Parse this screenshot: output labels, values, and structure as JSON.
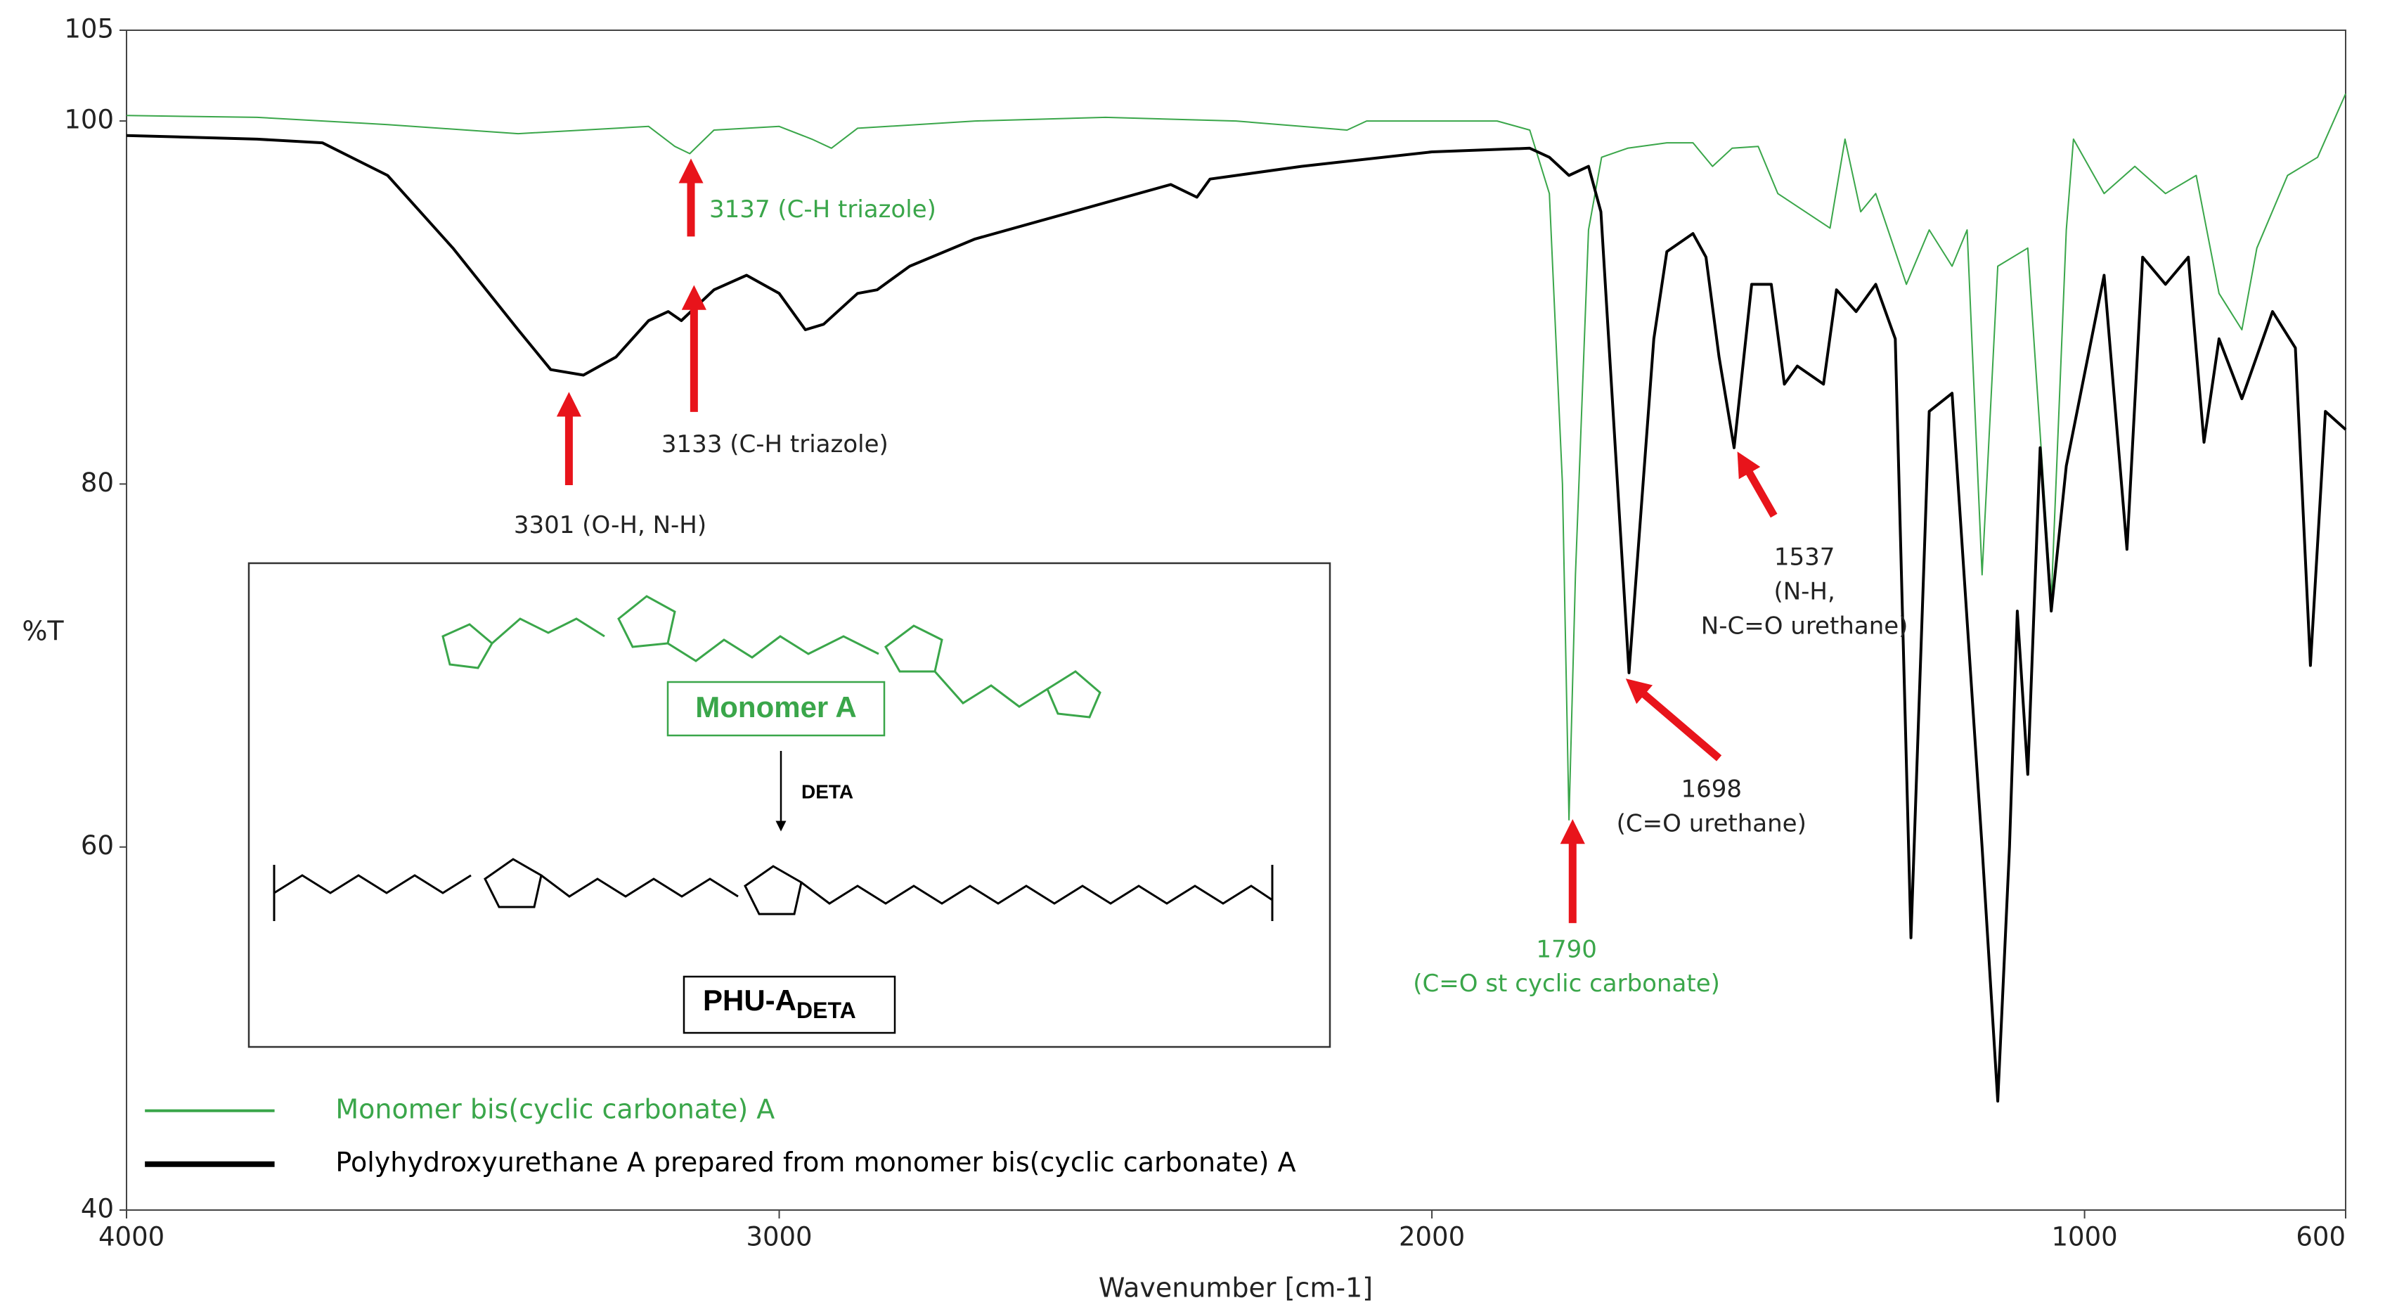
{
  "chart_data": {
    "type": "line",
    "x_label": "Wavenumber [cm-1]",
    "y_label": "%T",
    "xlim": [
      4000,
      600
    ],
    "ylim": [
      40,
      105
    ],
    "xticks": [
      4000,
      3000,
      2000,
      1000,
      600
    ],
    "yticks": [
      40,
      60,
      80,
      100,
      105
    ],
    "series": [
      {
        "name": "Monomer bis(cyclic carbonate) A",
        "color": "#3aa64a",
        "stroke_width": 2,
        "x": [
          4000,
          3800,
          3600,
          3400,
          3200,
          3160,
          3137,
          3100,
          3000,
          2950,
          2920,
          2880,
          2700,
          2500,
          2300,
          2130,
          2100,
          2000,
          1900,
          1850,
          1820,
          1800,
          1790,
          1780,
          1760,
          1740,
          1700,
          1640,
          1600,
          1570,
          1540,
          1500,
          1470,
          1390,
          1367,
          1343,
          1320,
          1273,
          1238,
          1203,
          1180,
          1157,
          1133,
          1087,
          1051,
          1028,
          1017,
          970,
          923,
          876,
          829,
          794,
          759,
          736,
          689,
          643,
          600
        ],
        "values": [
          100.3,
          100.2,
          99.8,
          99.3,
          99.7,
          98.6,
          98.2,
          99.5,
          99.7,
          99,
          98.5,
          99.6,
          100,
          100.2,
          100,
          99.5,
          100,
          100,
          100,
          99.5,
          96,
          80,
          61.5,
          75,
          94,
          98,
          98.5,
          98.8,
          98.8,
          97.5,
          98.5,
          98.6,
          96,
          94.1,
          99,
          95,
          96,
          91,
          94,
          92,
          94,
          75,
          92,
          93,
          73.6,
          94,
          99,
          96,
          97.5,
          96,
          97,
          90.5,
          88.5,
          93,
          97,
          98,
          101.5
        ]
      },
      {
        "name": "Polyhydroxyurethane A prepared from monomer bis(cyclic carbonate) A",
        "color": "#000000",
        "stroke_width": 4,
        "x": [
          4000,
          3800,
          3700,
          3600,
          3500,
          3400,
          3350,
          3300,
          3250,
          3200,
          3170,
          3150,
          3100,
          3050,
          3000,
          2960,
          2932,
          2880,
          2850,
          2800,
          2700,
          2600,
          2500,
          2400,
          2360,
          2340,
          2200,
          2000,
          1850,
          1820,
          1790,
          1760,
          1741,
          1698,
          1660,
          1640,
          1600,
          1580,
          1560,
          1537,
          1510,
          1480,
          1460,
          1440,
          1400,
          1380,
          1350,
          1320,
          1290,
          1266,
          1238,
          1203,
          1157,
          1133,
          1115,
          1103,
          1087,
          1068,
          1051,
          1028,
          970,
          935,
          911,
          876,
          841,
          817,
          794,
          759,
          712,
          677,
          654,
          631,
          600
        ],
        "values": [
          99.2,
          99,
          98.8,
          97,
          93,
          88.5,
          86.3,
          86,
          87,
          89,
          89.5,
          89,
          90.7,
          91.5,
          90.5,
          88.5,
          88.8,
          90.5,
          90.7,
          92,
          93.5,
          94.5,
          95.5,
          96.5,
          95.8,
          96.8,
          97.5,
          98.3,
          98.5,
          98,
          97,
          97.5,
          95,
          69.6,
          88,
          92.8,
          93.8,
          92.5,
          87,
          82,
          91,
          91,
          85.5,
          86.5,
          85.5,
          90.7,
          89.5,
          91,
          88,
          55,
          84,
          85,
          60,
          46,
          60,
          73,
          64,
          82,
          73,
          81,
          91.5,
          76.4,
          92.5,
          91,
          92.5,
          82.3,
          88,
          84.7,
          89.5,
          87.5,
          70,
          84,
          83
        ]
      }
    ],
    "annotations": [
      {
        "lines": [
          "3137 (C-H triazole)"
        ],
        "color": "#3aa64a"
      },
      {
        "lines": [
          "3301 (O-H, N-H)"
        ],
        "color": "#222222"
      },
      {
        "lines": [
          "3133 (C-H triazole)"
        ],
        "color": "#222222"
      },
      {
        "lines": [
          "1537",
          "(N-H,",
          "N-C=O urethane)"
        ],
        "color": "#222222"
      },
      {
        "lines": [
          "1698",
          "(C=O urethane)"
        ],
        "color": "#222222"
      },
      {
        "lines": [
          "1790",
          "(C=O st cyclic carbonate)"
        ],
        "color": "#3aa64a"
      }
    ],
    "inset": {
      "monomer_label": "Monomer A",
      "reagent": "DETA",
      "product_label": "PHU-A",
      "product_subscript": "DETA"
    }
  }
}
